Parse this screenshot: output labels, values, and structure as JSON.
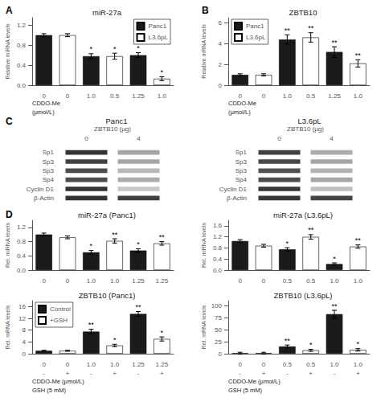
{
  "chart_data": [
    {
      "type": "bar",
      "title": "miR-27a",
      "subtitle": "A",
      "ylabel": "Relative miRNA levels",
      "categories": [
        "0",
        "0",
        "1.0",
        "0.5",
        "1.25",
        "1.0"
      ],
      "series": [
        {
          "name": "Panc1",
          "color": "#1a1a1a",
          "values": [
            1.0,
            null,
            0.58,
            null,
            0.6,
            null
          ],
          "errors": [
            0.03,
            null,
            0.05,
            null,
            0.05,
            null
          ],
          "significance": [
            null,
            null,
            "*",
            null,
            "*",
            null
          ]
        },
        {
          "name": "L3.6pL",
          "color": "#ffffff",
          "values": [
            null,
            1.0,
            null,
            0.58,
            null,
            0.13
          ],
          "errors": [
            null,
            0.03,
            null,
            0.06,
            null,
            0.04
          ],
          "significance": [
            null,
            null,
            null,
            "*",
            null,
            "*"
          ]
        }
      ],
      "ylim": [
        0,
        1.35
      ],
      "yticks": [
        {
          "value": 0,
          "label": "0.0"
        },
        0.4,
        0.8,
        1.2
      ],
      "grid": false,
      "legend": "upper right",
      "annotations": [
        "CDDO-Me",
        "(μmol/L)"
      ]
    },
    {
      "type": "bar",
      "title": "ZBTB10",
      "subtitle": "B",
      "ylabel": "Relative mRNA levels",
      "categories": [
        "0",
        "0",
        "1.0",
        "0.5",
        "1.25",
        "1.0"
      ],
      "series": [
        {
          "name": "Panc1",
          "color": "#1a1a1a",
          "values": [
            1.0,
            null,
            4.4,
            null,
            3.2,
            null
          ],
          "errors": [
            0.1,
            null,
            0.45,
            null,
            0.5,
            null
          ],
          "significance": [
            null,
            null,
            "**",
            null,
            "**",
            null
          ]
        },
        {
          "name": "L3.6pL",
          "color": "#ffffff",
          "values": [
            null,
            1.0,
            null,
            4.6,
            null,
            2.1
          ],
          "errors": [
            null,
            0.1,
            null,
            0.45,
            null,
            0.35
          ],
          "significance": [
            null,
            null,
            null,
            "**",
            null,
            "**"
          ]
        }
      ],
      "ylim": [
        0,
        6.5
      ],
      "yticks": [
        0,
        2,
        4,
        6
      ],
      "grid": false,
      "legend": "upper left",
      "annotations": [
        "CDDO-Me",
        "(μmol/L)"
      ]
    },
    {
      "type": "heatmap",
      "title": "Panc1",
      "subtitle": "C",
      "xlabel": "ZBTB10 (μg)",
      "x": [
        "0",
        "4"
      ],
      "y": [
        "Sp1",
        "Sp3",
        "Sp3",
        "Sp4",
        "Cyclin D1",
        "β-Actin"
      ],
      "values": [
        [
          0.2,
          0.65
        ],
        [
          0.25,
          0.65
        ],
        [
          0.3,
          0.72
        ],
        [
          0.3,
          0.68
        ],
        [
          0.2,
          0.78
        ],
        [
          0.2,
          0.25
        ]
      ]
    },
    {
      "type": "heatmap",
      "title": "L3.6pL",
      "xlabel": "ZBTB10 (μg)",
      "x": [
        "0",
        "4"
      ],
      "y": [
        "Sp1",
        "Sp3",
        "Sp3",
        "Sp4",
        "Cyclin D1",
        "β-Actin"
      ],
      "values": [
        [
          0.25,
          0.68
        ],
        [
          0.28,
          0.65
        ],
        [
          0.32,
          0.7
        ],
        [
          0.3,
          0.65
        ],
        [
          0.22,
          0.75
        ],
        [
          0.22,
          0.27
        ]
      ]
    },
    {
      "type": "bar",
      "title": "miR-27a (Panc1)",
      "subtitle": "D",
      "ylabel": "Rel. miRNA levels",
      "categories": [
        "0",
        "0",
        "1.0",
        "1.0",
        "1.25",
        "1.25"
      ],
      "series": [
        {
          "color": "#1a1a1a",
          "values": [
            1.0,
            null,
            0.5,
            null,
            0.55,
            null
          ],
          "errors": [
            0.04,
            null,
            0.05,
            null,
            0.05,
            null
          ],
          "significance": [
            null,
            null,
            "*",
            null,
            "*",
            null
          ]
        },
        {
          "color": "#ffffff",
          "values": [
            null,
            0.92,
            null,
            0.82,
            null,
            0.75
          ],
          "errors": [
            null,
            0.04,
            null,
            0.06,
            null,
            0.05
          ],
          "significance": [
            null,
            null,
            null,
            "**",
            null,
            "**"
          ]
        }
      ],
      "ylim": [
        0,
        1.4
      ],
      "yticks": [
        {
          "value": 0,
          "label": "0.0"
        },
        0.4,
        0.8,
        1.2
      ],
      "grid": false
    },
    {
      "type": "bar",
      "title": "miR-27a (L3.6pL)",
      "ylabel": "Rel. miRNA levels",
      "categories": [
        "0",
        "0",
        "0.5",
        "0.5",
        "1.0",
        "1.0"
      ],
      "series": [
        {
          "color": "#1a1a1a",
          "values": [
            1.05,
            null,
            0.75,
            null,
            0.22,
            null
          ],
          "errors": [
            0.05,
            null,
            0.06,
            null,
            0.04,
            null
          ],
          "significance": [
            null,
            null,
            "*",
            null,
            "*",
            null
          ]
        },
        {
          "color": "#ffffff",
          "values": [
            null,
            0.88,
            null,
            1.2,
            null,
            0.85
          ],
          "errors": [
            null,
            0.05,
            null,
            0.08,
            null,
            0.06
          ],
          "significance": [
            null,
            null,
            null,
            "**",
            null,
            "**"
          ]
        }
      ],
      "ylim": [
        0,
        1.8
      ],
      "yticks": [
        {
          "value": 0,
          "label": "0.0"
        },
        0.4,
        0.8,
        1.2,
        1.6
      ],
      "grid": false
    },
    {
      "type": "bar",
      "title": "ZBTB10 (Panc1)",
      "ylabel": "Rel. mRNA levels",
      "categories": [
        "0",
        "0",
        "1.0",
        "1.0",
        "1.25",
        "1.25"
      ],
      "categories_bottom": [
        "-",
        "+",
        "-",
        "+",
        "-",
        "+"
      ],
      "series": [
        {
          "name": "Control",
          "color": "#1a1a1a",
          "values": [
            1.0,
            null,
            7.5,
            null,
            13.5,
            null
          ],
          "errors": [
            0.15,
            null,
            0.8,
            null,
            0.8,
            null
          ],
          "significance": [
            null,
            null,
            "**",
            null,
            "**",
            null
          ]
        },
        {
          "name": "+GSH",
          "color": "#ffffff",
          "values": [
            null,
            1.0,
            null,
            2.8,
            null,
            5.0
          ],
          "errors": [
            null,
            0.15,
            null,
            0.4,
            null,
            0.7
          ],
          "significance": [
            null,
            null,
            null,
            "*",
            null,
            "*"
          ]
        }
      ],
      "ylim": [
        0,
        18
      ],
      "yticks": [
        0,
        4,
        8,
        12,
        16
      ],
      "grid": false,
      "legend": "upper left",
      "annotations": [
        "CDDO-Me (μmol/L)",
        "GSH (5 mM)"
      ]
    },
    {
      "type": "bar",
      "title": "ZBTB10 (L3.6pL)",
      "ylabel": "Rel. mRNA levels",
      "categories": [
        "0",
        "0",
        "0.5",
        "0.5",
        "1.0",
        "1.0"
      ],
      "categories_bottom": [
        "-",
        "+",
        "-",
        "+",
        "-",
        "+"
      ],
      "series": [
        {
          "color": "#1a1a1a",
          "values": [
            1.0,
            null,
            15.0,
            null,
            82.0,
            null
          ],
          "errors": [
            2.0,
            null,
            3.0,
            null,
            8.0,
            null
          ],
          "significance": [
            null,
            null,
            "**",
            null,
            "**",
            null
          ]
        },
        {
          "color": "#ffffff",
          "values": [
            null,
            1.0,
            null,
            7.0,
            null,
            8.0
          ],
          "errors": [
            null,
            2.0,
            null,
            2.0,
            null,
            2.5
          ],
          "significance": [
            null,
            null,
            null,
            "*",
            null,
            "*"
          ]
        }
      ],
      "ylim": [
        0,
        110
      ],
      "yticks": [
        0,
        25,
        50,
        75,
        100
      ],
      "grid": false,
      "annotations": [
        "CDDO-Me (μmol/L)",
        "GSH (5 mM)"
      ]
    }
  ]
}
